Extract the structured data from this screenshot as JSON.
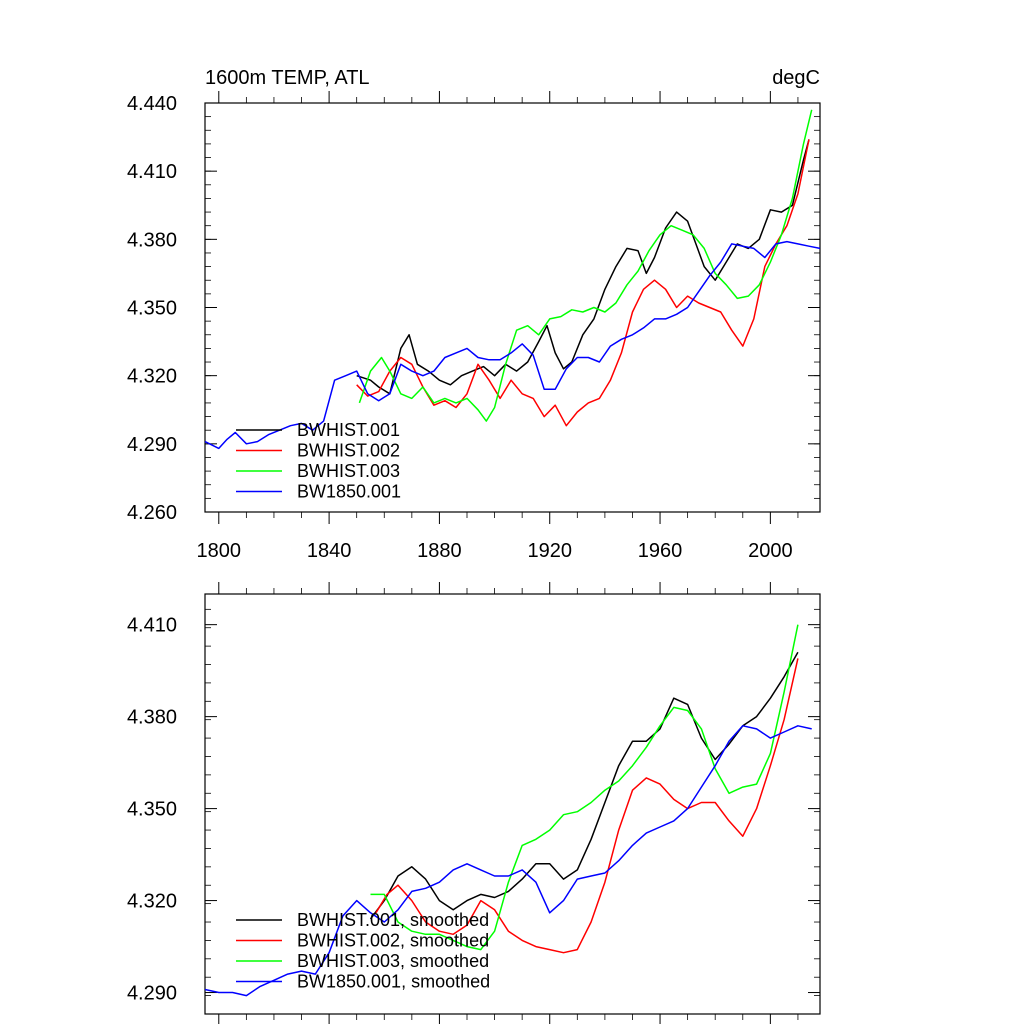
{
  "chart_data": [
    {
      "type": "line",
      "title": "1600m TEMP, ATL",
      "units": "degC",
      "xlim": [
        1795,
        2018
      ],
      "ylim": [
        4.26,
        4.44
      ],
      "xticks": [
        1800,
        1840,
        1880,
        1920,
        1960,
        2000
      ],
      "yticks": [
        4.26,
        4.29,
        4.32,
        4.35,
        4.38,
        4.41,
        4.44
      ],
      "ytick_labels": [
        "4.260",
        "4.290",
        "4.320",
        "4.350",
        "4.380",
        "4.410",
        "4.440"
      ],
      "legend_position": "lower-left",
      "series": [
        {
          "name": "BWHIST.001",
          "color": "#000000",
          "x": [
            1850,
            1855,
            1858,
            1862,
            1866,
            1869,
            1872,
            1876,
            1880,
            1884,
            1888,
            1892,
            1896,
            1900,
            1904,
            1908,
            1912,
            1916,
            1919,
            1922,
            1925,
            1928,
            1932,
            1936,
            1940,
            1944,
            1948,
            1952,
            1955,
            1958,
            1962,
            1966,
            1970,
            1973,
            1976,
            1980,
            1984,
            1988,
            1992,
            1996,
            2000,
            2004,
            2008,
            2012,
            2014
          ],
          "y": [
            4.32,
            4.318,
            4.315,
            4.312,
            4.332,
            4.338,
            4.325,
            4.322,
            4.318,
            4.316,
            4.32,
            4.322,
            4.324,
            4.32,
            4.325,
            4.322,
            4.326,
            4.335,
            4.342,
            4.33,
            4.323,
            4.326,
            4.338,
            4.345,
            4.358,
            4.368,
            4.376,
            4.375,
            4.365,
            4.372,
            4.385,
            4.392,
            4.388,
            4.378,
            4.368,
            4.362,
            4.37,
            4.378,
            4.376,
            4.38,
            4.393,
            4.392,
            4.395,
            4.415,
            4.424
          ]
        },
        {
          "name": "BWHIST.002",
          "color": "#ff0000",
          "x": [
            1850,
            1854,
            1858,
            1862,
            1866,
            1870,
            1874,
            1878,
            1882,
            1886,
            1890,
            1894,
            1898,
            1902,
            1906,
            1910,
            1914,
            1918,
            1922,
            1926,
            1930,
            1934,
            1938,
            1942,
            1946,
            1950,
            1954,
            1958,
            1962,
            1966,
            1970,
            1974,
            1978,
            1982,
            1986,
            1990,
            1994,
            1998,
            2002,
            2006,
            2010,
            2014
          ],
          "y": [
            4.316,
            4.311,
            4.313,
            4.322,
            4.328,
            4.325,
            4.315,
            4.307,
            4.309,
            4.306,
            4.312,
            4.325,
            4.318,
            4.31,
            4.318,
            4.312,
            4.31,
            4.302,
            4.307,
            4.298,
            4.304,
            4.308,
            4.31,
            4.318,
            4.33,
            4.348,
            4.358,
            4.362,
            4.358,
            4.35,
            4.355,
            4.352,
            4.35,
            4.348,
            4.34,
            4.333,
            4.345,
            4.368,
            4.378,
            4.386,
            4.4,
            4.424
          ]
        },
        {
          "name": "BWHIST.003",
          "color": "#00ff00",
          "x": [
            1851,
            1855,
            1859,
            1862,
            1866,
            1870,
            1874,
            1878,
            1882,
            1886,
            1890,
            1894,
            1897,
            1900,
            1904,
            1908,
            1912,
            1916,
            1920,
            1924,
            1928,
            1932,
            1936,
            1940,
            1944,
            1948,
            1952,
            1956,
            1960,
            1964,
            1968,
            1972,
            1976,
            1980,
            1984,
            1988,
            1992,
            1996,
            2000,
            2004,
            2008,
            2012,
            2015
          ],
          "y": [
            4.308,
            4.322,
            4.328,
            4.322,
            4.312,
            4.31,
            4.315,
            4.308,
            4.31,
            4.308,
            4.31,
            4.305,
            4.3,
            4.306,
            4.325,
            4.34,
            4.342,
            4.338,
            4.345,
            4.346,
            4.349,
            4.348,
            4.35,
            4.348,
            4.352,
            4.36,
            4.366,
            4.375,
            4.382,
            4.386,
            4.384,
            4.382,
            4.376,
            4.365,
            4.36,
            4.354,
            4.355,
            4.36,
            4.37,
            4.382,
            4.398,
            4.422,
            4.437
          ]
        },
        {
          "name": "BW1850.001",
          "color": "#0000ff",
          "x": [
            1795,
            1800,
            1803,
            1806,
            1810,
            1814,
            1818,
            1822,
            1826,
            1830,
            1834,
            1838,
            1842,
            1846,
            1850,
            1854,
            1858,
            1862,
            1866,
            1870,
            1874,
            1878,
            1882,
            1886,
            1890,
            1894,
            1898,
            1902,
            1906,
            1910,
            1914,
            1918,
            1922,
            1926,
            1930,
            1934,
            1938,
            1942,
            1946,
            1950,
            1954,
            1958,
            1962,
            1966,
            1970,
            1974,
            1978,
            1982,
            1986,
            1990,
            1994,
            1998,
            2002,
            2006,
            2010,
            2014,
            2018
          ],
          "y": [
            4.291,
            4.288,
            4.292,
            4.295,
            4.29,
            4.291,
            4.294,
            4.296,
            4.298,
            4.299,
            4.296,
            4.3,
            4.318,
            4.32,
            4.322,
            4.312,
            4.309,
            4.312,
            4.325,
            4.322,
            4.32,
            4.322,
            4.328,
            4.33,
            4.332,
            4.328,
            4.327,
            4.327,
            4.33,
            4.334,
            4.329,
            4.314,
            4.314,
            4.323,
            4.328,
            4.328,
            4.326,
            4.333,
            4.336,
            4.338,
            4.341,
            4.345,
            4.345,
            4.347,
            4.35,
            4.357,
            4.364,
            4.37,
            4.378,
            4.377,
            4.376,
            4.372,
            4.378,
            4.379,
            4.378,
            4.377,
            4.376
          ]
        }
      ]
    },
    {
      "type": "line",
      "title": "",
      "xlim": [
        1795,
        2018
      ],
      "ylim": [
        4.283,
        4.42
      ],
      "xticks": [
        1800,
        1840,
        1880,
        1920,
        1960,
        2000
      ],
      "yticks": [
        4.29,
        4.32,
        4.35,
        4.38,
        4.41
      ],
      "ytick_labels": [
        "4.290",
        "4.320",
        "4.350",
        "4.380",
        "4.410"
      ],
      "legend_position": "lower-left",
      "series": [
        {
          "name": "BWHIST.001, smoothed",
          "color": "#000000",
          "x": [
            1855,
            1860,
            1865,
            1870,
            1875,
            1880,
            1885,
            1890,
            1895,
            1900,
            1905,
            1910,
            1915,
            1920,
            1925,
            1930,
            1935,
            1940,
            1945,
            1950,
            1955,
            1960,
            1965,
            1970,
            1975,
            1980,
            1985,
            1990,
            1995,
            2000,
            2005,
            2010
          ],
          "y": [
            4.314,
            4.32,
            4.328,
            4.331,
            4.327,
            4.32,
            4.317,
            4.32,
            4.322,
            4.321,
            4.323,
            4.327,
            4.332,
            4.332,
            4.327,
            4.33,
            4.34,
            4.352,
            4.364,
            4.372,
            4.372,
            4.376,
            4.386,
            4.384,
            4.373,
            4.366,
            4.371,
            4.377,
            4.38,
            4.386,
            4.393,
            4.401
          ]
        },
        {
          "name": "BWHIST.002, smoothed",
          "color": "#ff0000",
          "x": [
            1857,
            1861,
            1865,
            1870,
            1875,
            1880,
            1885,
            1890,
            1895,
            1900,
            1905,
            1910,
            1915,
            1920,
            1925,
            1930,
            1935,
            1940,
            1945,
            1950,
            1955,
            1960,
            1965,
            1970,
            1975,
            1980,
            1985,
            1990,
            1995,
            2000,
            2005,
            2010
          ],
          "y": [
            4.316,
            4.322,
            4.325,
            4.32,
            4.313,
            4.31,
            4.309,
            4.312,
            4.32,
            4.317,
            4.31,
            4.307,
            4.305,
            4.304,
            4.303,
            4.304,
            4.313,
            4.326,
            4.343,
            4.356,
            4.36,
            4.358,
            4.353,
            4.35,
            4.352,
            4.352,
            4.346,
            4.341,
            4.35,
            4.364,
            4.379,
            4.399
          ]
        },
        {
          "name": "BWHIST.003, smoothed",
          "color": "#00ff00",
          "x": [
            1855,
            1860,
            1865,
            1870,
            1875,
            1880,
            1885,
            1890,
            1895,
            1900,
            1905,
            1910,
            1915,
            1920,
            1925,
            1930,
            1935,
            1940,
            1945,
            1950,
            1955,
            1960,
            1965,
            1970,
            1975,
            1980,
            1985,
            1990,
            1995,
            2000,
            2005,
            2010
          ],
          "y": [
            4.322,
            4.322,
            4.313,
            4.31,
            4.309,
            4.309,
            4.307,
            4.305,
            4.304,
            4.31,
            4.326,
            4.338,
            4.34,
            4.343,
            4.348,
            4.349,
            4.352,
            4.356,
            4.359,
            4.364,
            4.37,
            4.377,
            4.383,
            4.382,
            4.376,
            4.363,
            4.355,
            4.357,
            4.358,
            4.368,
            4.388,
            4.41
          ]
        },
        {
          "name": "BW1850.001, smoothed",
          "color": "#0000ff",
          "x": [
            1795,
            1800,
            1805,
            1810,
            1815,
            1820,
            1825,
            1830,
            1835,
            1840,
            1845,
            1850,
            1855,
            1860,
            1865,
            1870,
            1875,
            1880,
            1885,
            1890,
            1895,
            1900,
            1905,
            1910,
            1915,
            1920,
            1925,
            1930,
            1935,
            1940,
            1945,
            1950,
            1955,
            1960,
            1965,
            1970,
            1975,
            1980,
            1985,
            1990,
            1995,
            2000,
            2005,
            2010,
            2015
          ],
          "y": [
            4.291,
            4.29,
            4.29,
            4.289,
            4.292,
            4.294,
            4.296,
            4.297,
            4.296,
            4.303,
            4.315,
            4.32,
            4.316,
            4.313,
            4.317,
            4.323,
            4.324,
            4.326,
            4.33,
            4.332,
            4.33,
            4.328,
            4.328,
            4.33,
            4.326,
            4.316,
            4.32,
            4.327,
            4.328,
            4.329,
            4.333,
            4.338,
            4.342,
            4.344,
            4.346,
            4.35,
            4.357,
            4.364,
            4.372,
            4.377,
            4.376,
            4.373,
            4.375,
            4.377,
            4.376
          ]
        }
      ]
    }
  ]
}
